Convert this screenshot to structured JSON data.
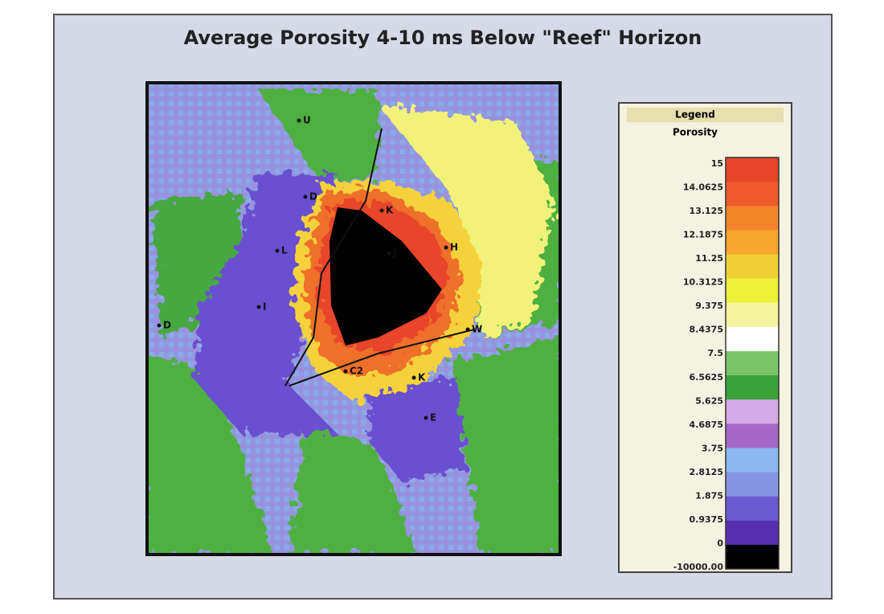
{
  "title": "Average Porosity 4-10 ms Below \"Reef\" Horizon",
  "legend": {
    "title": "Legend",
    "subtitle": "Porosity",
    "labels": [
      "15",
      "14.0625",
      "13.125",
      "12.1875",
      "11.25",
      "10.3125",
      "9.375",
      "8.4375",
      "7.5",
      "6.5625",
      "5.625",
      "4.6875",
      "3.75",
      "2.8125",
      "1.875",
      "0.9375",
      "0",
      "-10000.00"
    ]
  },
  "wells": [
    "U",
    "D",
    "K",
    "L",
    "J",
    "H",
    "I",
    "D",
    "W",
    "C2",
    "K",
    "E"
  ]
}
